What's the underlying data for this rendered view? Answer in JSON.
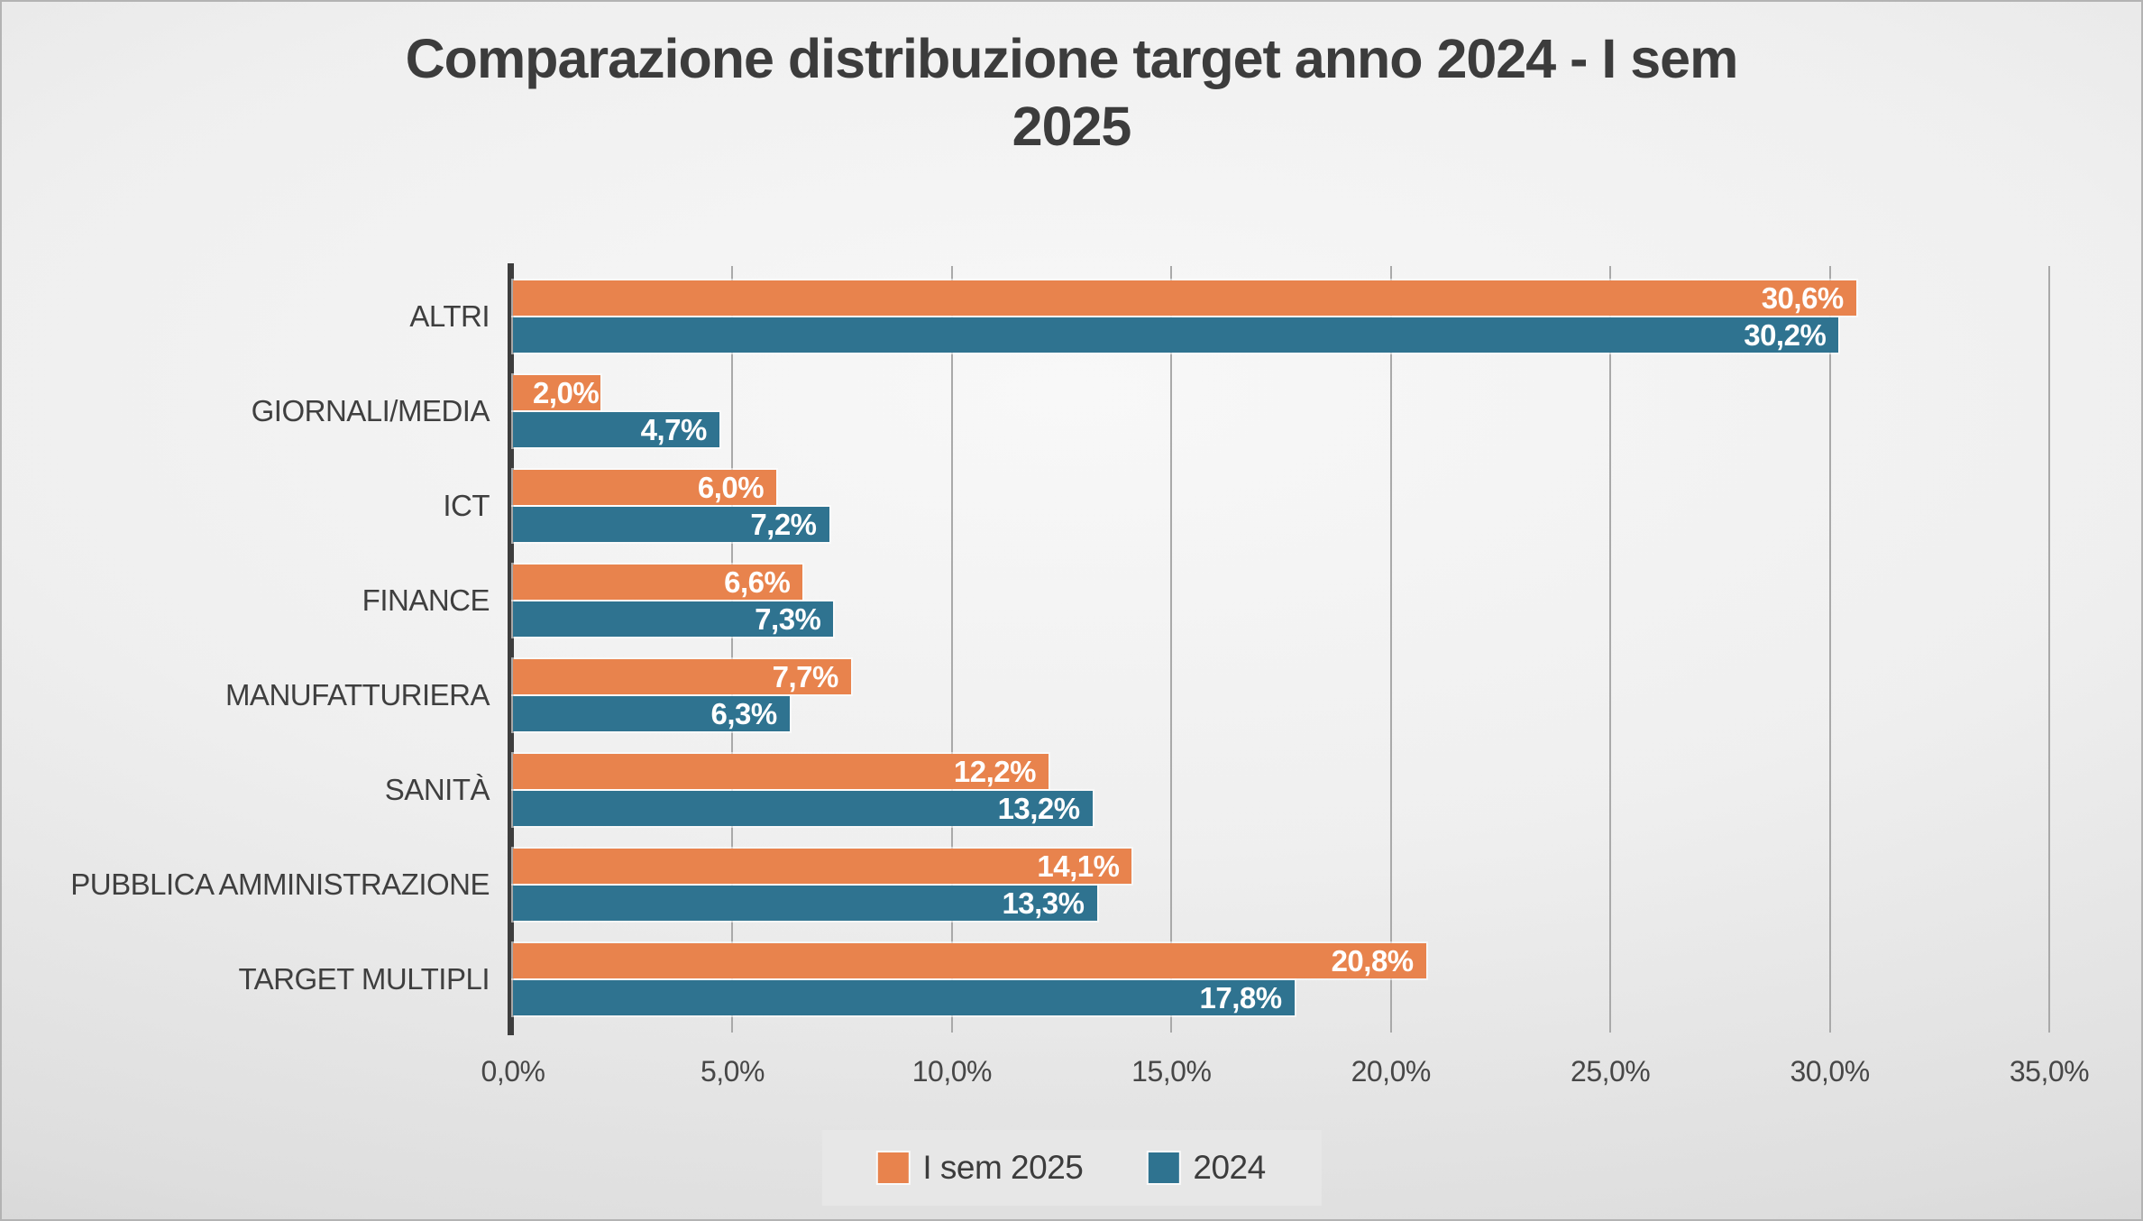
{
  "title": {
    "full": "Comparazione distribuzione target anno 2024 - I sem 2025",
    "line1": "Comparazione distribuzione target anno 2024 - I sem",
    "line2": "2025"
  },
  "colors": {
    "sem2025": "#E8834D",
    "y2024": "#2F7390",
    "axis": "#3d3d3d",
    "gridline": "#a9a9a9",
    "text": "#3f3f3f",
    "value_label": "#ffffff",
    "legend_bg": "#e7e7e7"
  },
  "chart_data": {
    "type": "bar",
    "orientation": "horizontal",
    "title": "Comparazione distribuzione target anno 2024 - I sem 2025",
    "categories": [
      "ALTRI",
      "GIORNALI/MEDIA",
      "ICT",
      "FINANCE",
      "MANUFATTURIERA",
      "SANITÀ",
      "PUBBLICA AMMINISTRAZIONE",
      "TARGET MULTIPLI"
    ],
    "series": [
      {
        "name": "I sem 2025",
        "color": "#E8834D",
        "values": [
          30.6,
          2.0,
          6.0,
          6.6,
          7.7,
          12.2,
          14.1,
          20.8
        ],
        "labels": [
          "30,6%",
          "2,0%",
          "6,0%",
          "6,6%",
          "7,7%",
          "12,2%",
          "14,1%",
          "20,8%"
        ]
      },
      {
        "name": "2024",
        "color": "#2F7390",
        "values": [
          30.2,
          4.7,
          7.2,
          7.3,
          6.3,
          13.2,
          13.3,
          17.8
        ],
        "labels": [
          "30,2%",
          "4,7%",
          "7,2%",
          "7,3%",
          "6,3%",
          "13,2%",
          "13,3%",
          "17,8%"
        ]
      }
    ],
    "xlim": [
      0,
      35
    ],
    "x_tick_step": 5,
    "x_ticks": [
      "0,0%",
      "5,0%",
      "10,0%",
      "15,0%",
      "20,0%",
      "25,0%",
      "30,0%",
      "35,0%"
    ],
    "grid": true,
    "legend_position": "bottom",
    "value_labels": "inside-end"
  }
}
